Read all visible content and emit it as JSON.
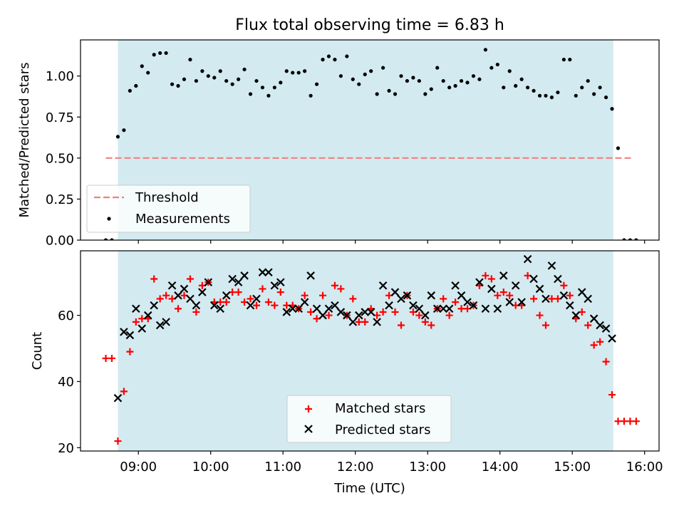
{
  "title": "Flux total observing time = 6.83 h",
  "colors": {
    "shade": "#d3eaf0",
    "threshold": "#f08080",
    "measurements": "#000000",
    "matched": "#ff0000",
    "predicted": "#000000"
  },
  "chart_data": [
    {
      "type": "scatter",
      "panel": "top",
      "ylabel": "Matched/Predicted stars",
      "ylim": [
        0.0,
        1.22
      ],
      "y_ticks": [
        0.0,
        0.25,
        0.5,
        0.75,
        1.0
      ],
      "y_tick_labels": [
        "0.00",
        "0.25",
        "0.50",
        "0.75",
        "1.00"
      ],
      "xlim": [
        "08:12",
        "16:12"
      ],
      "shaded_span": [
        "08:43",
        "15:34"
      ],
      "legend": {
        "position": "lower-left",
        "entries": [
          "Threshold",
          "Measurements"
        ]
      },
      "threshold": {
        "name": "Threshold",
        "y": 0.5,
        "x_range": [
          "08:33",
          "15:50"
        ]
      },
      "series": [
        {
          "name": "Measurements",
          "x": [
            "08:33",
            "08:38",
            "08:43",
            "08:48",
            "08:53",
            "08:58",
            "09:03",
            "09:08",
            "09:13",
            "09:18",
            "09:23",
            "09:28",
            "09:33",
            "09:38",
            "09:43",
            "09:48",
            "09:53",
            "09:58",
            "10:03",
            "10:08",
            "10:13",
            "10:18",
            "10:23",
            "10:28",
            "10:33",
            "10:38",
            "10:43",
            "10:48",
            "10:53",
            "10:58",
            "11:03",
            "11:08",
            "11:13",
            "11:18",
            "11:23",
            "11:28",
            "11:33",
            "11:38",
            "11:43",
            "11:48",
            "11:53",
            "11:58",
            "12:03",
            "12:08",
            "12:13",
            "12:18",
            "12:23",
            "12:28",
            "12:33",
            "12:38",
            "12:43",
            "12:48",
            "12:53",
            "12:58",
            "13:03",
            "13:08",
            "13:13",
            "13:18",
            "13:23",
            "13:28",
            "13:33",
            "13:38",
            "13:43",
            "13:48",
            "13:53",
            "13:58",
            "14:03",
            "14:08",
            "14:13",
            "14:18",
            "14:23",
            "14:28",
            "14:33",
            "14:38",
            "14:43",
            "14:48",
            "14:53",
            "14:58",
            "15:03",
            "15:08",
            "15:13",
            "15:18",
            "15:23",
            "15:28",
            "15:33",
            "15:38",
            "15:43",
            "15:48",
            "15:53"
          ],
          "y": [
            0.0,
            0.0,
            0.63,
            0.67,
            0.91,
            0.94,
            1.06,
            1.02,
            1.13,
            1.14,
            1.14,
            0.95,
            0.94,
            0.98,
            1.1,
            0.97,
            1.03,
            1.0,
            0.99,
            1.03,
            0.97,
            0.95,
            0.98,
            1.04,
            0.89,
            0.97,
            0.93,
            0.88,
            0.93,
            0.96,
            1.03,
            1.02,
            1.02,
            1.03,
            0.88,
            0.95,
            1.1,
            1.12,
            1.1,
            1.0,
            1.12,
            0.98,
            0.95,
            1.01,
            1.03,
            0.89,
            1.05,
            0.91,
            0.89,
            1.0,
            0.97,
            0.99,
            0.97,
            0.89,
            0.92,
            1.05,
            0.97,
            0.93,
            0.94,
            0.97,
            0.96,
            1.0,
            0.98,
            1.16,
            1.05,
            1.07,
            0.93,
            1.03,
            0.94,
            0.98,
            0.93,
            0.91,
            0.88,
            0.88,
            0.87,
            0.9,
            1.1,
            1.1,
            0.88,
            0.93,
            0.97,
            0.89,
            0.93,
            0.87,
            0.8,
            0.56,
            0.0,
            0.0,
            0.0
          ]
        }
      ]
    },
    {
      "type": "scatter",
      "panel": "bottom",
      "xlabel": "Time (UTC)",
      "ylabel": "Count",
      "ylim": [
        19.0,
        79.5
      ],
      "y_ticks": [
        20,
        40,
        60
      ],
      "y_tick_labels": [
        "20",
        "40",
        "60"
      ],
      "xlim": [
        "08:12",
        "16:12"
      ],
      "x_ticks": [
        "09:00",
        "10:00",
        "11:00",
        "12:00",
        "13:00",
        "14:00",
        "15:00",
        "16:00"
      ],
      "x_tick_labels": [
        "09:00",
        "10:00",
        "11:00",
        "12:00",
        "13:00",
        "14:00",
        "15:00",
        "16:00"
      ],
      "shaded_span": [
        "08:43",
        "15:34"
      ],
      "legend": {
        "position": "lower-center",
        "entries": [
          "Matched stars",
          "Predicted stars"
        ]
      },
      "series": [
        {
          "name": "Matched stars",
          "marker": "+",
          "x": [
            "08:33",
            "08:38",
            "08:43",
            "08:48",
            "08:53",
            "08:58",
            "09:03",
            "09:08",
            "09:13",
            "09:18",
            "09:23",
            "09:28",
            "09:33",
            "09:38",
            "09:43",
            "09:48",
            "09:53",
            "09:58",
            "10:03",
            "10:08",
            "10:13",
            "10:18",
            "10:23",
            "10:28",
            "10:33",
            "10:38",
            "10:43",
            "10:48",
            "10:53",
            "10:58",
            "11:03",
            "11:08",
            "11:13",
            "11:18",
            "11:23",
            "11:28",
            "11:33",
            "11:38",
            "11:43",
            "11:48",
            "11:53",
            "11:58",
            "12:03",
            "12:08",
            "12:13",
            "12:18",
            "12:23",
            "12:28",
            "12:33",
            "12:38",
            "12:43",
            "12:48",
            "12:53",
            "12:58",
            "13:03",
            "13:08",
            "13:13",
            "13:18",
            "13:23",
            "13:28",
            "13:33",
            "13:38",
            "13:43",
            "13:48",
            "13:53",
            "13:58",
            "14:03",
            "14:08",
            "14:13",
            "14:18",
            "14:23",
            "14:28",
            "14:33",
            "14:38",
            "14:43",
            "14:48",
            "14:53",
            "14:58",
            "15:03",
            "15:08",
            "15:13",
            "15:18",
            "15:23",
            "15:28",
            "15:33",
            "15:38",
            "15:43",
            "15:48",
            "15:53"
          ],
          "y": [
            47,
            47,
            22,
            37,
            49,
            58,
            59,
            59,
            71,
            65,
            66,
            65,
            62,
            66,
            71,
            61,
            69,
            70,
            64,
            64,
            64,
            67,
            67,
            64,
            65,
            63,
            68,
            64,
            63,
            67,
            63,
            63,
            62,
            66,
            61,
            59,
            66,
            60,
            69,
            68,
            60,
            65,
            58,
            58,
            62,
            60,
            61,
            66,
            61,
            57,
            66,
            61,
            60,
            58,
            57,
            62,
            65,
            60,
            64,
            62,
            62,
            63,
            69,
            72,
            71,
            66,
            67,
            66,
            63,
            63,
            72,
            65,
            60,
            57,
            65,
            65,
            69,
            66,
            59,
            61,
            57,
            51,
            52,
            46,
            36,
            28,
            28,
            28,
            28
          ]
        },
        {
          "name": "Predicted stars",
          "marker": "x",
          "x": [
            "08:43",
            "08:48",
            "08:53",
            "08:58",
            "09:03",
            "09:08",
            "09:13",
            "09:18",
            "09:23",
            "09:28",
            "09:33",
            "09:38",
            "09:43",
            "09:48",
            "09:53",
            "09:58",
            "10:03",
            "10:08",
            "10:13",
            "10:18",
            "10:23",
            "10:28",
            "10:33",
            "10:38",
            "10:43",
            "10:48",
            "10:53",
            "10:58",
            "11:03",
            "11:08",
            "11:13",
            "11:18",
            "11:23",
            "11:28",
            "11:33",
            "11:38",
            "11:43",
            "11:48",
            "11:53",
            "11:58",
            "12:03",
            "12:08",
            "12:13",
            "12:18",
            "12:23",
            "12:28",
            "12:33",
            "12:38",
            "12:43",
            "12:48",
            "12:53",
            "12:58",
            "13:03",
            "13:08",
            "13:13",
            "13:18",
            "13:23",
            "13:28",
            "13:33",
            "13:38",
            "13:43",
            "13:48",
            "13:53",
            "13:58",
            "14:03",
            "14:08",
            "14:13",
            "14:18",
            "14:23",
            "14:28",
            "14:33",
            "14:38",
            "14:43",
            "14:48",
            "14:53",
            "14:58",
            "15:03",
            "15:08",
            "15:13",
            "15:18",
            "15:23",
            "15:28",
            "15:33"
          ],
          "y": [
            35,
            55,
            54,
            62,
            56,
            60,
            63,
            57,
            58,
            69,
            66,
            68,
            65,
            63,
            67,
            70,
            63,
            62,
            66,
            71,
            70,
            72,
            63,
            65,
            73,
            73,
            69,
            70,
            61,
            62,
            62,
            64,
            72,
            62,
            60,
            62,
            63,
            61,
            60,
            58,
            60,
            61,
            61,
            58,
            69,
            63,
            67,
            65,
            66,
            63,
            62,
            60,
            66,
            62,
            62,
            62,
            69,
            66,
            64,
            63,
            70,
            62,
            68,
            62,
            72,
            64,
            69,
            64,
            77,
            71,
            68,
            65,
            75,
            71,
            66,
            63,
            60,
            67,
            65,
            59,
            57,
            56,
            53
          ]
        }
      ]
    }
  ]
}
